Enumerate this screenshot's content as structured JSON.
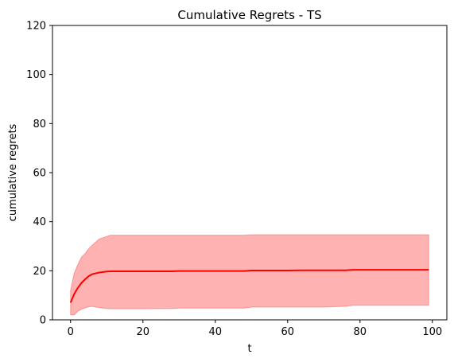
{
  "chart_data": {
    "type": "line",
    "title": "Cumulative Regrets - TS",
    "xlabel": "t",
    "ylabel": "cumulative regrets",
    "xlim": [
      -5,
      104
    ],
    "ylim": [
      0,
      120
    ],
    "xticks": [
      "0",
      "20",
      "40",
      "60",
      "80",
      "100"
    ],
    "yticks": [
      "0",
      "20",
      "40",
      "60",
      "80",
      "100",
      "120"
    ],
    "grid": false,
    "series": [
      {
        "color": "#ff0000",
        "x": [
          0,
          1,
          2,
          3,
          4,
          5,
          6,
          7,
          8,
          9,
          10,
          11,
          15,
          20,
          28,
          30,
          40,
          48,
          50,
          60,
          64,
          70,
          76,
          78,
          90,
          99
        ],
        "y": [
          7,
          10.5,
          13,
          15,
          16.5,
          17.8,
          18.6,
          19,
          19.3,
          19.5,
          19.7,
          19.8,
          19.8,
          19.8,
          19.8,
          19.9,
          19.9,
          19.9,
          20.1,
          20.1,
          20.2,
          20.2,
          20.2,
          20.4,
          20.4,
          20.4
        ],
        "band_color": "#ff0000",
        "band_opacity": 0.3,
        "lower": [
          2,
          2,
          3.5,
          4.3,
          4.8,
          5.3,
          5.5,
          5.2,
          5,
          4.8,
          4.6,
          4.5,
          4.5,
          4.5,
          4.6,
          4.8,
          4.8,
          4.8,
          5.2,
          5.2,
          5.2,
          5.2,
          5.5,
          5.9,
          5.9,
          5.9
        ],
        "upper": [
          12,
          19,
          22.5,
          25.5,
          27,
          29,
          30.5,
          31.8,
          33,
          33.5,
          34,
          34.5,
          34.5,
          34.5,
          34.5,
          34.5,
          34.5,
          34.5,
          34.7,
          34.7,
          34.7,
          34.7,
          34.7,
          34.7,
          34.7,
          34.7
        ]
      }
    ]
  }
}
